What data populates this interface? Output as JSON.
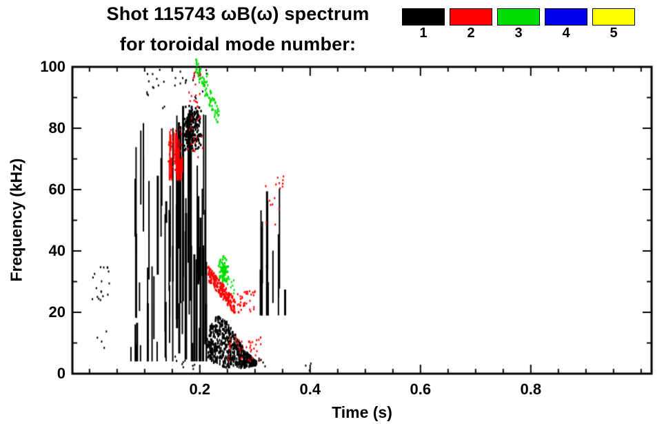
{
  "title": {
    "line1": "Shot 115743 ωB(ω) spectrum",
    "line2": "for toroidal mode number:"
  },
  "legend": {
    "items": [
      {
        "label": "1",
        "color": "#000000"
      },
      {
        "label": "2",
        "color": "#ff0000"
      },
      {
        "label": "3",
        "color": "#00dd00"
      },
      {
        "label": "4",
        "color": "#0000ee"
      },
      {
        "label": "5",
        "color": "#ffff00"
      }
    ]
  },
  "chart_data": {
    "type": "scatter",
    "title": "Shot 115743 ωB(ω) spectrum for toroidal mode number:",
    "xlabel": "Time (s)",
    "ylabel": "Frequency (kHz)",
    "xlim": [
      -0.031,
      1.019
    ],
    "ylim": [
      0,
      100
    ],
    "grid": false,
    "legend_position": "top-right",
    "x_ticks": {
      "major": [
        0.2,
        0.4,
        0.6,
        0.8
      ],
      "labels": [
        "0.2",
        "0.4",
        "0.6",
        "0.8"
      ],
      "minor_step": 0.05,
      "minor_range": [
        0,
        1.0
      ]
    },
    "y_ticks": {
      "major": [
        0,
        20,
        40,
        60,
        80,
        100
      ],
      "labels": [
        "0",
        "20",
        "40",
        "60",
        "80",
        "100"
      ],
      "minor_step": 10,
      "minor_range": [
        0,
        100
      ]
    },
    "series": [
      {
        "name": "n=1",
        "label": "1",
        "color": "#000000",
        "clusters": [
          {
            "type": "specks",
            "t": [
              0.004,
              0.036
            ],
            "f": [
              23,
              35
            ],
            "count": 18
          },
          {
            "type": "specks",
            "t": [
              0.014,
              0.032
            ],
            "f": [
              8,
              14
            ],
            "count": 4
          },
          {
            "type": "vstreaks",
            "t": [
              0.072,
              0.15
            ],
            "f": [
              4,
              82
            ],
            "count": 30,
            "len": [
              6,
              48
            ],
            "cols": 10
          },
          {
            "type": "specks",
            "t": [
              0.104,
              0.138
            ],
            "f": [
              86,
              100
            ],
            "count": 14
          },
          {
            "type": "vstreaks",
            "t": [
              0.15,
              0.214
            ],
            "f": [
              4,
              88
            ],
            "count": 36,
            "len": [
              10,
              65
            ],
            "cols": 12
          },
          {
            "type": "blob",
            "t": [
              0.168,
              0.205
            ],
            "f": [
              72,
              88
            ],
            "count": 220
          },
          {
            "type": "specks",
            "t": [
              0.148,
              0.176
            ],
            "f": [
              92,
              100
            ],
            "count": 8
          },
          {
            "type": "specks",
            "t": [
              0.186,
              0.214
            ],
            "f": [
              88,
              100
            ],
            "count": 10
          },
          {
            "type": "specks",
            "t": [
              0.15,
              0.212
            ],
            "f": [
              1,
              6
            ],
            "count": 9
          },
          {
            "type": "mass",
            "t": [
              0.213,
              0.303
            ],
            "top": [
              14,
              19,
              17,
              12,
              7,
              4
            ],
            "bot": [
              5,
              3,
              2,
              2,
              2,
              3
            ],
            "count": 650
          },
          {
            "type": "specks",
            "t": [
              0.3,
              0.32
            ],
            "f": [
              2,
              6
            ],
            "count": 5
          },
          {
            "type": "vstreaks",
            "t": [
              0.306,
              0.36
            ],
            "f": [
              19,
              70
            ],
            "count": 18,
            "len": [
              14,
              46
            ],
            "cols": 5
          },
          {
            "type": "specks",
            "t": [
              0.392,
              0.403
            ],
            "f": [
              1,
              4
            ],
            "count": 3
          }
        ]
      },
      {
        "name": "n=2",
        "label": "2",
        "color": "#ff0000",
        "clusters": [
          {
            "type": "vstreaks",
            "t": [
              0.143,
              0.168
            ],
            "f": [
              63,
              80
            ],
            "count": 16,
            "len": [
              4,
              14
            ]
          },
          {
            "type": "specks",
            "t": [
              0.143,
              0.168
            ],
            "f": [
              63,
              80
            ],
            "count": 30
          },
          {
            "type": "specks",
            "t": [
              0.178,
              0.206
            ],
            "f": [
              70,
              92
            ],
            "count": 26
          },
          {
            "type": "specks",
            "t": [
              0.186,
              0.202
            ],
            "f": [
              94,
              100
            ],
            "count": 8
          },
          {
            "type": "band",
            "from": [
              0.214,
              33
            ],
            "to": [
              0.264,
              22
            ],
            "width": 5,
            "count": 220
          },
          {
            "type": "specks",
            "t": [
              0.262,
              0.3
            ],
            "f": [
              20,
              27
            ],
            "count": 34
          },
          {
            "type": "specks",
            "t": [
              0.252,
              0.312
            ],
            "f": [
              4,
              12
            ],
            "count": 40
          },
          {
            "type": "specks",
            "t": [
              0.316,
              0.352
            ],
            "f": [
              48,
              66
            ],
            "count": 16
          }
        ]
      },
      {
        "name": "n=3",
        "label": "3",
        "color": "#00dd00",
        "clusters": [
          {
            "type": "band",
            "from": [
              0.193,
              100
            ],
            "to": [
              0.236,
              83
            ],
            "width": 6,
            "count": 80
          },
          {
            "type": "blob",
            "t": [
              0.231,
              0.253
            ],
            "f": [
              29,
              39
            ],
            "count": 70
          },
          {
            "type": "specks",
            "t": [
              0.248,
              0.264
            ],
            "f": [
              26,
              31
            ],
            "count": 10
          },
          {
            "type": "specks",
            "t": [
              0.207,
              0.216
            ],
            "f": [
              92,
              99
            ],
            "count": 5
          }
        ]
      },
      {
        "name": "n=4",
        "label": "4",
        "color": "#0000ee",
        "clusters": []
      },
      {
        "name": "n=5",
        "label": "5",
        "color": "#ffff00",
        "clusters": []
      }
    ]
  }
}
